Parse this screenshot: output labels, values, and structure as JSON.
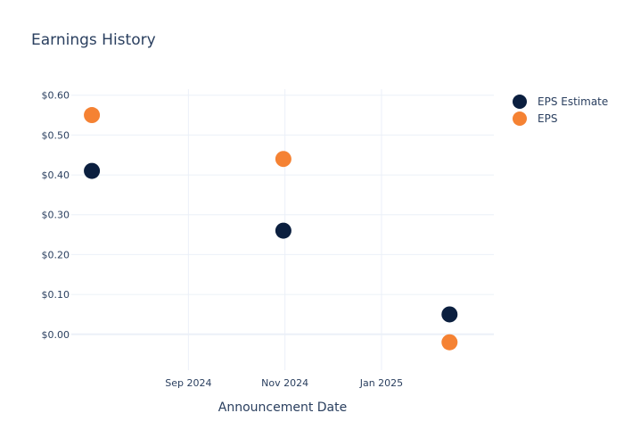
{
  "chart_data": {
    "type": "scatter",
    "title": "Earnings History",
    "xlabel": "Announcement Date",
    "ylabel": "",
    "x_ticks": [
      {
        "date": "2024-09-01",
        "label": "Sep 2024"
      },
      {
        "date": "2024-11-01",
        "label": "Nov 2024"
      },
      {
        "date": "2025-01-01",
        "label": "Jan 2025"
      }
    ],
    "xlim": [
      "2024-06-19",
      "2025-03-13"
    ],
    "y_ticks": [
      0.0,
      0.1,
      0.2,
      0.3,
      0.4,
      0.5,
      0.6
    ],
    "y_tick_labels": [
      "$0.00",
      "$0.10",
      "$0.20",
      "$0.30",
      "$0.40",
      "$0.50",
      "$0.60"
    ],
    "ylim": [
      -0.09,
      0.615
    ],
    "grid": true,
    "legend_position": "top-right",
    "series": [
      {
        "name": "EPS Estimate",
        "color": "#0b1f3f",
        "points": [
          {
            "x": "2024-07-02",
            "y": 0.41
          },
          {
            "x": "2024-10-31",
            "y": 0.26
          },
          {
            "x": "2025-02-13",
            "y": 0.05
          }
        ]
      },
      {
        "name": "EPS",
        "color": "#f58233",
        "points": [
          {
            "x": "2024-07-02",
            "y": 0.55
          },
          {
            "x": "2024-10-31",
            "y": 0.44
          },
          {
            "x": "2025-02-13",
            "y": -0.02
          }
        ]
      }
    ]
  }
}
